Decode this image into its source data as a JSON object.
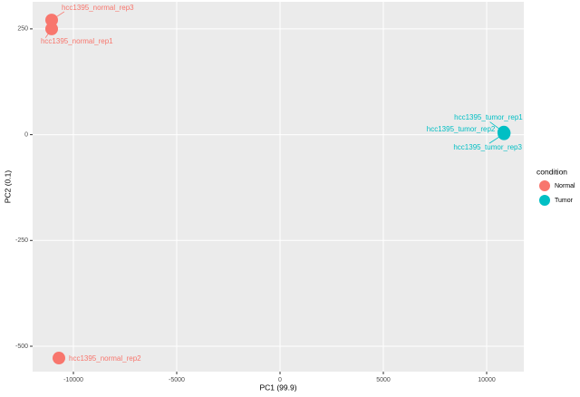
{
  "chart_data": {
    "type": "scatter",
    "x_label": "PC1 (99.9)",
    "y_label": "PC2 (0.1)",
    "legend_title": "condition",
    "legend_position": "right",
    "xlim": [
      -11974,
      11798
    ],
    "xticks": [
      -10000,
      -5000,
      0,
      5000,
      10000
    ],
    "ylim": [
      -560,
      314
    ],
    "yticks": [
      -500,
      -250,
      0,
      250
    ],
    "grid": true,
    "series": [
      {
        "name": "Normal",
        "color": "#F8766D",
        "x": [
          -11053,
          -10702,
          -11053
        ],
        "values": [
          250,
          -528,
          271
        ],
        "point_labels": [
          "hcc1395_normal_rep1",
          "hcc1395_normal_rep2",
          "hcc1395_normal_rep3"
        ]
      },
      {
        "name": "Tumor",
        "color": "#00BFC4",
        "x": [
          10830,
          10850,
          10840
        ],
        "values": [
          6,
          4,
          2
        ],
        "point_labels": [
          "hcc1395_tumor_rep1",
          "hcc1395_tumor_rep2",
          "hcc1395_tumor_rep3"
        ]
      }
    ]
  }
}
